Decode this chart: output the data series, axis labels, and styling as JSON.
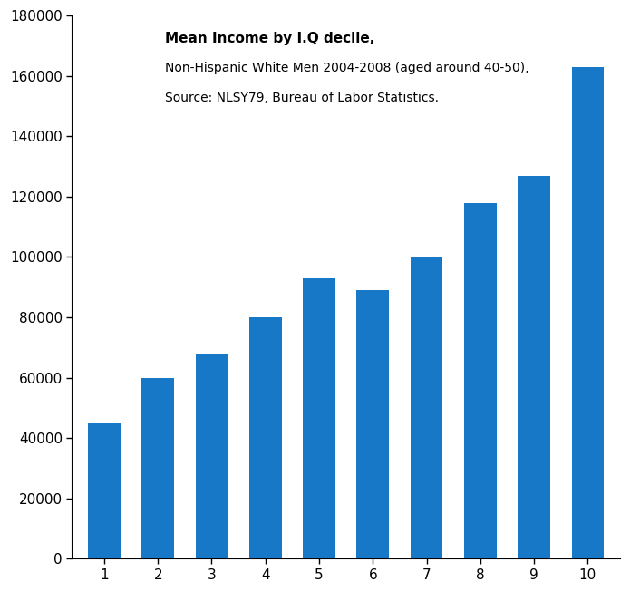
{
  "categories": [
    1,
    2,
    3,
    4,
    5,
    6,
    7,
    8,
    9,
    10
  ],
  "values": [
    45000,
    60000,
    68000,
    80000,
    93000,
    89000,
    100000,
    118000,
    127000,
    163000
  ],
  "bar_color": "#1878c8",
  "title_line1": "Mean Income by I.Q decile,",
  "title_line2": "Non-Hispanic White Men 2004-2008 (aged around 40-50),",
  "title_line3": "Source: NLSY79, Bureau of Labor Statistics.",
  "ylim": [
    0,
    180000
  ],
  "yticks": [
    0,
    20000,
    40000,
    60000,
    80000,
    100000,
    120000,
    140000,
    160000,
    180000
  ],
  "ytick_labels": [
    "0",
    "20000",
    "40000",
    "60000",
    "80000",
    "100000",
    "120000",
    "140000",
    "160000",
    "180000"
  ],
  "background_color": "#ffffff",
  "title_fontsize": 11,
  "subtitle_fontsize": 10,
  "tick_fontsize": 11,
  "bar_width": 0.6
}
